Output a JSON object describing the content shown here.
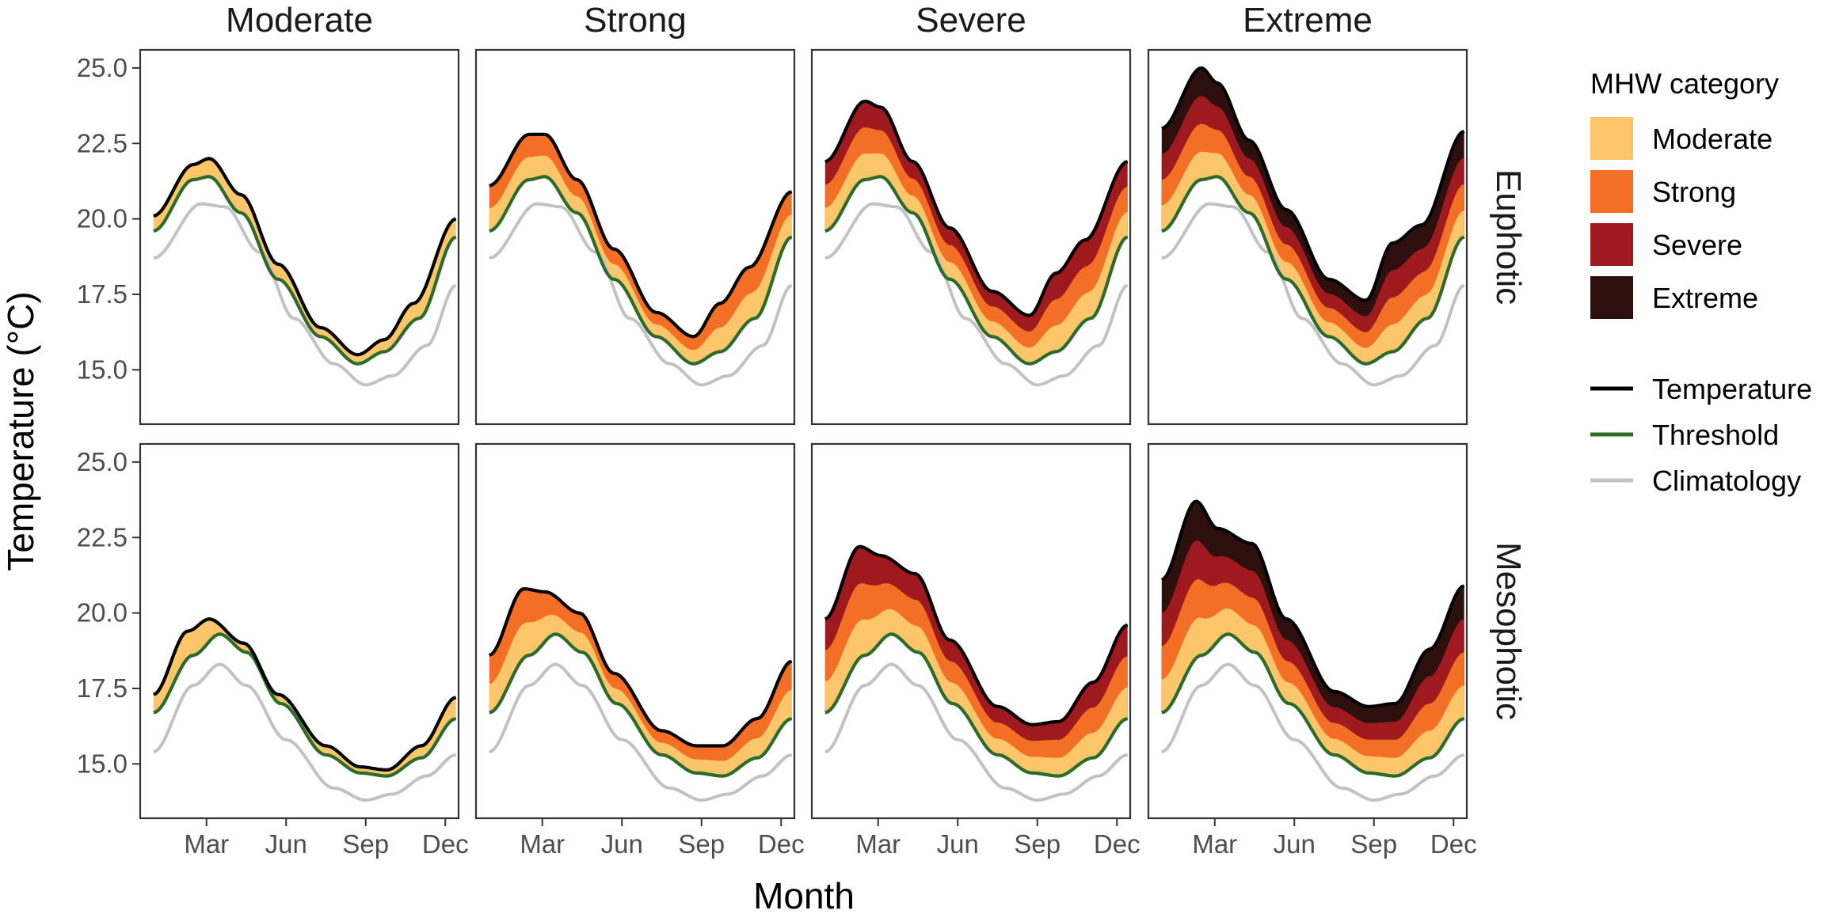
{
  "chart_data": {
    "type": "area",
    "xlabel": "Month",
    "ylabel": "Temperature (°C)",
    "ylim": [
      13.2,
      25.6
    ],
    "yticks": [
      15.0,
      17.5,
      20.0,
      22.5,
      25.0
    ],
    "ytick_labels": [
      "15.0",
      "17.5",
      "20.0",
      "22.5",
      "25.0"
    ],
    "xlim": [
      0,
      12
    ],
    "xticks": [
      2.5,
      5.5,
      8.5,
      11.5
    ],
    "xtick_labels": [
      "Mar",
      "Jun",
      "Sep",
      "Dec"
    ],
    "x_months": [
      0.5,
      1.5,
      2.5,
      3.5,
      4.5,
      5.5,
      6.5,
      7.5,
      8.5,
      9.5,
      10.5,
      11.5
    ],
    "columns": [
      "Moderate",
      "Strong",
      "Severe",
      "Extreme"
    ],
    "rows": [
      "Euphotic",
      "Mesophotic"
    ],
    "legend": {
      "title": "MHW category",
      "fill_entries": [
        {
          "label": "Moderate",
          "color": "#fec66a"
        },
        {
          "label": "Strong",
          "color": "#f46f26"
        },
        {
          "label": "Severe",
          "color": "#9e1a1e"
        },
        {
          "label": "Extreme",
          "color": "#2d0f0e"
        }
      ],
      "line_entries": [
        {
          "label": "Temperature",
          "color": "#000000"
        },
        {
          "label": "Threshold",
          "color": "#2e6b2a"
        },
        {
          "label": "Climatology",
          "color": "#c2c2c2"
        }
      ]
    },
    "series": {
      "Euphotic": {
        "climatology": [
          18.7,
          20.5,
          20.4,
          18.9,
          16.7,
          15.2,
          14.5,
          14.8,
          15.8,
          17.8
        ],
        "climatology_x": [
          0.5,
          2.3,
          3.2,
          4.5,
          5.8,
          7.3,
          8.5,
          9.5,
          10.8,
          11.9
        ],
        "threshold": [
          19.6,
          21.3,
          21.4,
          20.2,
          18.0,
          16.1,
          15.2,
          15.6,
          16.7,
          19.4
        ],
        "threshold_x": [
          0.5,
          2.0,
          2.6,
          3.8,
          5.2,
          6.8,
          8.2,
          9.2,
          10.5,
          11.9
        ],
        "temperature": {
          "Moderate": [
            20.1,
            21.8,
            22.0,
            20.8,
            18.5,
            16.4,
            15.5,
            16.0,
            17.2,
            20.0
          ],
          "Strong": [
            21.1,
            22.8,
            22.8,
            21.3,
            19.0,
            16.9,
            16.1,
            17.2,
            18.4,
            20.9
          ],
          "Severe": [
            21.9,
            23.9,
            23.7,
            21.9,
            19.7,
            17.6,
            16.8,
            18.2,
            19.3,
            21.9
          ],
          "Extreme": [
            23.0,
            25.0,
            24.5,
            22.6,
            20.3,
            18.0,
            17.3,
            19.2,
            19.8,
            22.9
          ]
        },
        "temperature_x": [
          0.5,
          2.0,
          2.6,
          3.8,
          5.2,
          6.8,
          8.2,
          9.2,
          10.3,
          11.9
        ]
      },
      "Mesophotic": {
        "climatology": [
          15.4,
          17.6,
          18.3,
          17.6,
          15.8,
          14.2,
          13.8,
          14.0,
          14.6,
          15.3
        ],
        "climatology_x": [
          0.5,
          2.0,
          3.0,
          4.0,
          5.5,
          7.3,
          8.5,
          9.5,
          10.8,
          11.9
        ],
        "threshold": [
          16.7,
          18.6,
          19.3,
          18.7,
          17.0,
          15.3,
          14.7,
          14.6,
          15.2,
          16.5
        ],
        "threshold_x": [
          0.5,
          2.0,
          3.0,
          4.0,
          5.3,
          7.0,
          8.3,
          9.3,
          10.6,
          11.9
        ],
        "temperature": {
          "Moderate": [
            17.3,
            19.4,
            19.8,
            19.0,
            17.3,
            15.6,
            14.9,
            14.8,
            15.6,
            17.2
          ],
          "Strong": [
            18.6,
            20.8,
            20.7,
            20.0,
            18.0,
            16.1,
            15.6,
            15.6,
            16.5,
            18.4
          ],
          "Severe": [
            19.8,
            22.2,
            21.9,
            21.3,
            19.1,
            16.9,
            16.3,
            16.4,
            17.7,
            19.6
          ],
          "Extreme": [
            21.1,
            23.7,
            22.8,
            22.3,
            19.8,
            17.4,
            16.9,
            17.0,
            18.8,
            20.9
          ]
        },
        "temperature_x": [
          0.5,
          1.8,
          2.6,
          3.9,
          5.2,
          7.0,
          8.3,
          9.3,
          10.6,
          11.9
        ]
      }
    }
  }
}
